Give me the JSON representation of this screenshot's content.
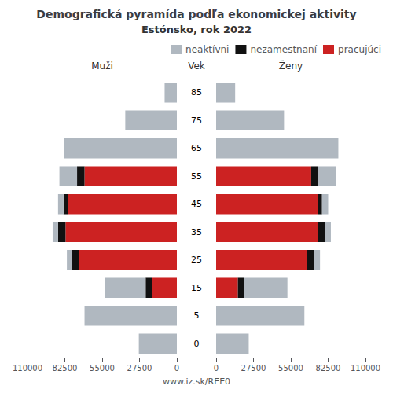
{
  "chart_data": {
    "type": "bar",
    "orientation": "horizontal",
    "stacked": true,
    "grid": false,
    "legend": "upper right",
    "title": "Demografická pyramída podľa ekonomickej aktivity",
    "subtitle": "Estónsko, rok 2022",
    "category_label": "Vek",
    "footer": "www.iz.sk/REE0",
    "categories": [
      "0",
      "5",
      "15",
      "25",
      "35",
      "45",
      "55",
      "65",
      "75",
      "85"
    ],
    "xlim": [
      0,
      110000
    ],
    "xticks": [
      0,
      27500,
      55000,
      82500,
      110000
    ],
    "panels": [
      {
        "title": "Muži",
        "series": [
          {
            "name": "pracujúci",
            "color": "#cc2222",
            "values": [
              0,
              0,
              18000,
              72000,
              82000,
              80000,
              68000,
              0,
              0,
              0
            ]
          },
          {
            "name": "nezamestnaní",
            "color": "#111111",
            "values": [
              0,
              0,
              5000,
              5000,
              5500,
              3500,
              5500,
              0,
              0,
              0
            ]
          },
          {
            "name": "neaktívni",
            "color": "#b0b8c0",
            "values": [
              28000,
              68000,
              30000,
              4000,
              4000,
              4000,
              13000,
              83000,
              38000,
              9000
            ]
          }
        ]
      },
      {
        "title": "Ženy",
        "series": [
          {
            "name": "pracujúci",
            "color": "#cc2222",
            "values": [
              0,
              0,
              16000,
              67000,
              75000,
              75000,
              70000,
              0,
              0,
              0
            ]
          },
          {
            "name": "nezamestnaní",
            "color": "#111111",
            "values": [
              0,
              0,
              4500,
              5000,
              5000,
              3000,
              5000,
              0,
              0,
              0
            ]
          },
          {
            "name": "neaktívni",
            "color": "#b0b8c0",
            "values": [
              24000,
              65000,
              32000,
              4500,
              4500,
              4500,
              13000,
              90000,
              50000,
              14000
            ]
          }
        ]
      }
    ]
  }
}
